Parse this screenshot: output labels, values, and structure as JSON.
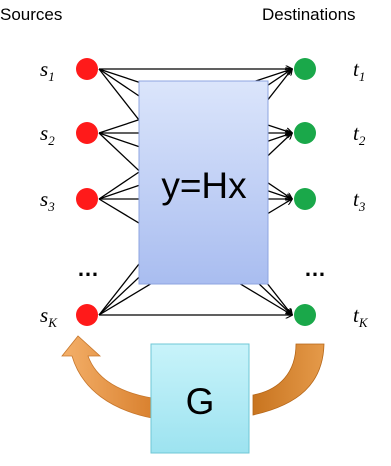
{
  "headers": {
    "left": "Sources",
    "right": "Destinations"
  },
  "sources": [
    {
      "name": "s",
      "sub": "1"
    },
    {
      "name": "s",
      "sub": "2"
    },
    {
      "name": "s",
      "sub": "3"
    },
    {
      "name": "s",
      "sub": "K"
    }
  ],
  "destinations": [
    {
      "name": "t",
      "sub": "1"
    },
    {
      "name": "t",
      "sub": "2"
    },
    {
      "name": "t",
      "sub": "3"
    },
    {
      "name": "t",
      "sub": "K"
    }
  ],
  "ellipsis": "…",
  "channel_box": {
    "label": "y=Hx"
  },
  "feedback_box": {
    "label": "G"
  },
  "colors": {
    "source": "#ff1a1a",
    "destination": "#1aa84a",
    "channel_box": "#b7c8f3",
    "feedback_box": "#a6e8f3",
    "feedback_arrow": "#e08a36"
  }
}
